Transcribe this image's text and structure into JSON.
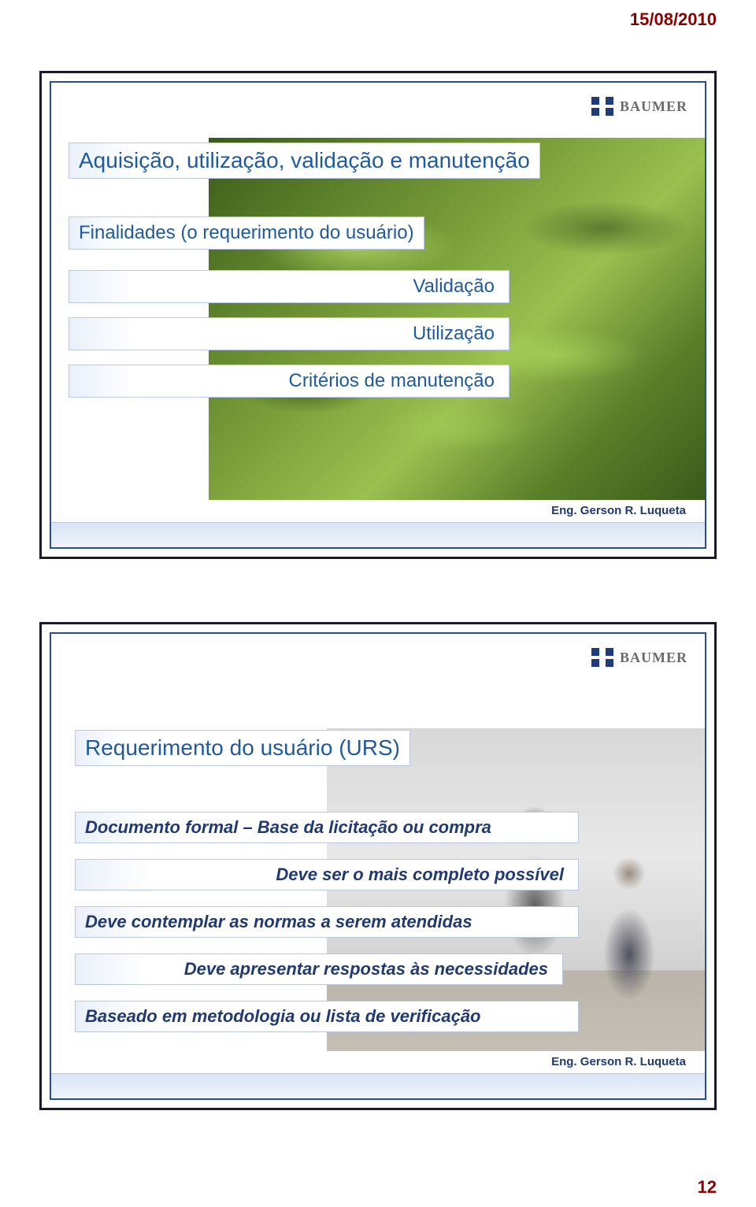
{
  "header": {
    "date": "15/08/2010"
  },
  "footer": {
    "page_number": "12"
  },
  "logo": {
    "brand": "BAUMER"
  },
  "author": {
    "text": "Eng. Gerson R. Luqueta"
  },
  "colors": {
    "slide_outer_border": "#1a1a2e",
    "slide_inner_border": "#2a4d8f",
    "heading_text": "#1f5a9e",
    "body_text": "#203a70",
    "date_color": "#8b0000",
    "label_border": "#b8c8e0"
  },
  "slide1": {
    "title": "Aquisição, utilização, validação e manutenção",
    "subtitle": "Finalidades (o requerimento do usuário)",
    "rows": [
      "Validação",
      "Utilização",
      "Critérios de manutenção"
    ]
  },
  "slide2": {
    "title": "Requerimento do usuário (URS)",
    "rows": [
      "Documento formal – Base da licitação ou compra",
      "Deve ser o mais completo possível",
      "Deve contemplar as normas a serem atendidas",
      "Deve apresentar respostas às necessidades",
      "Baseado em metodologia ou lista de verificação"
    ]
  }
}
